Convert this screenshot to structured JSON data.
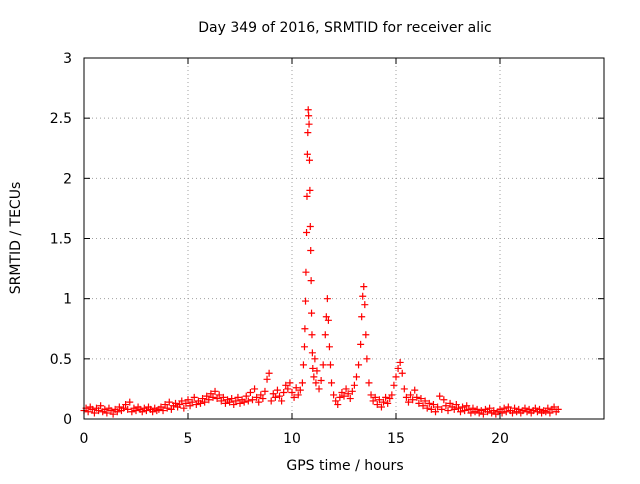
{
  "chart_data": {
    "type": "scatter",
    "title": "Day 349 of 2016, SRMTID for receiver alic",
    "xlabel": "GPS time / hours",
    "ylabel": "SRMTID / TECUs",
    "xlim": [
      0,
      25
    ],
    "ylim": [
      0,
      3
    ],
    "x_ticks": [
      0,
      5,
      10,
      15,
      20
    ],
    "x_tick_labels": [
      "0",
      "5",
      "10",
      "15",
      "20"
    ],
    "y_ticks": [
      0,
      0.5,
      1,
      1.5,
      2,
      2.5,
      3
    ],
    "y_tick_labels": [
      "0",
      "0.5",
      "1",
      "1.5",
      "2",
      "2.5",
      "3"
    ],
    "grid": true,
    "marker": "+",
    "colors": {
      "series": "#ff0000",
      "grid": "#a0a0a0",
      "axes": "#000000"
    },
    "series": [
      {
        "name": "SRMTID",
        "points": [
          [
            0.0,
            0.07
          ],
          [
            0.1,
            0.09
          ],
          [
            0.2,
            0.06
          ],
          [
            0.3,
            0.1
          ],
          [
            0.4,
            0.08
          ],
          [
            0.5,
            0.05
          ],
          [
            0.6,
            0.09
          ],
          [
            0.7,
            0.07
          ],
          [
            0.8,
            0.11
          ],
          [
            0.9,
            0.06
          ],
          [
            1.0,
            0.08
          ],
          [
            1.1,
            0.05
          ],
          [
            1.2,
            0.09
          ],
          [
            1.3,
            0.07
          ],
          [
            1.4,
            0.04
          ],
          [
            1.5,
            0.08
          ],
          [
            1.6,
            0.06
          ],
          [
            1.7,
            0.1
          ],
          [
            1.8,
            0.07
          ],
          [
            1.9,
            0.09
          ],
          [
            2.0,
            0.12
          ],
          [
            2.1,
            0.08
          ],
          [
            2.2,
            0.14
          ],
          [
            2.3,
            0.06
          ],
          [
            2.4,
            0.09
          ],
          [
            2.5,
            0.07
          ],
          [
            2.6,
            0.1
          ],
          [
            2.7,
            0.08
          ],
          [
            2.8,
            0.06
          ],
          [
            2.9,
            0.09
          ],
          [
            3.0,
            0.07
          ],
          [
            3.1,
            0.1
          ],
          [
            3.2,
            0.08
          ],
          [
            3.3,
            0.06
          ],
          [
            3.4,
            0.09
          ],
          [
            3.5,
            0.07
          ],
          [
            3.6,
            0.08
          ],
          [
            3.7,
            0.1
          ],
          [
            3.8,
            0.07
          ],
          [
            3.9,
            0.12
          ],
          [
            4.0,
            0.09
          ],
          [
            4.1,
            0.14
          ],
          [
            4.2,
            0.08
          ],
          [
            4.3,
            0.11
          ],
          [
            4.4,
            0.13
          ],
          [
            4.5,
            0.1
          ],
          [
            4.6,
            0.12
          ],
          [
            4.7,
            0.15
          ],
          [
            4.8,
            0.09
          ],
          [
            4.9,
            0.13
          ],
          [
            5.0,
            0.16
          ],
          [
            5.1,
            0.11
          ],
          [
            5.2,
            0.14
          ],
          [
            5.3,
            0.18
          ],
          [
            5.4,
            0.12
          ],
          [
            5.5,
            0.15
          ],
          [
            5.6,
            0.13
          ],
          [
            5.7,
            0.17
          ],
          [
            5.8,
            0.14
          ],
          [
            5.9,
            0.19
          ],
          [
            6.0,
            0.16
          ],
          [
            6.1,
            0.21
          ],
          [
            6.2,
            0.18
          ],
          [
            6.3,
            0.23
          ],
          [
            6.4,
            0.17
          ],
          [
            6.5,
            0.2
          ],
          [
            6.6,
            0.15
          ],
          [
            6.7,
            0.18
          ],
          [
            6.8,
            0.13
          ],
          [
            6.9,
            0.16
          ],
          [
            7.0,
            0.14
          ],
          [
            7.1,
            0.17
          ],
          [
            7.2,
            0.12
          ],
          [
            7.3,
            0.15
          ],
          [
            7.4,
            0.18
          ],
          [
            7.5,
            0.13
          ],
          [
            7.6,
            0.16
          ],
          [
            7.7,
            0.14
          ],
          [
            7.8,
            0.19
          ],
          [
            7.9,
            0.15
          ],
          [
            8.0,
            0.22
          ],
          [
            8.1,
            0.16
          ],
          [
            8.2,
            0.25
          ],
          [
            8.3,
            0.18
          ],
          [
            8.4,
            0.14
          ],
          [
            8.5,
            0.2
          ],
          [
            8.6,
            0.17
          ],
          [
            8.7,
            0.23
          ],
          [
            8.8,
            0.33
          ],
          [
            8.9,
            0.38
          ],
          [
            9.0,
            0.15
          ],
          [
            9.1,
            0.21
          ],
          [
            9.2,
            0.18
          ],
          [
            9.3,
            0.24
          ],
          [
            9.4,
            0.19
          ],
          [
            9.5,
            0.15
          ],
          [
            9.6,
            0.22
          ],
          [
            9.7,
            0.28
          ],
          [
            9.8,
            0.25
          ],
          [
            9.9,
            0.3
          ],
          [
            10.0,
            0.22
          ],
          [
            10.1,
            0.18
          ],
          [
            10.2,
            0.26
          ],
          [
            10.3,
            0.2
          ],
          [
            10.4,
            0.24
          ],
          [
            10.5,
            0.3
          ],
          [
            10.55,
            0.45
          ],
          [
            10.6,
            0.6
          ],
          [
            10.62,
            0.75
          ],
          [
            10.65,
            0.98
          ],
          [
            10.67,
            1.22
          ],
          [
            10.7,
            1.55
          ],
          [
            10.72,
            1.85
          ],
          [
            10.74,
            2.2
          ],
          [
            10.76,
            2.38
          ],
          [
            10.78,
            2.57
          ],
          [
            10.8,
            2.52
          ],
          [
            10.82,
            2.45
          ],
          [
            10.84,
            2.15
          ],
          [
            10.86,
            1.9
          ],
          [
            10.88,
            1.6
          ],
          [
            10.9,
            1.4
          ],
          [
            10.92,
            1.15
          ],
          [
            10.94,
            0.88
          ],
          [
            10.96,
            0.7
          ],
          [
            10.98,
            0.55
          ],
          [
            11.0,
            0.42
          ],
          [
            11.05,
            0.35
          ],
          [
            11.1,
            0.5
          ],
          [
            11.15,
            0.3
          ],
          [
            11.2,
            0.4
          ],
          [
            11.3,
            0.25
          ],
          [
            11.4,
            0.32
          ],
          [
            11.5,
            0.45
          ],
          [
            11.6,
            0.7
          ],
          [
            11.65,
            0.85
          ],
          [
            11.7,
            1.0
          ],
          [
            11.75,
            0.82
          ],
          [
            11.8,
            0.6
          ],
          [
            11.85,
            0.45
          ],
          [
            11.9,
            0.3
          ],
          [
            12.0,
            0.2
          ],
          [
            12.1,
            0.15
          ],
          [
            12.2,
            0.12
          ],
          [
            12.3,
            0.18
          ],
          [
            12.4,
            0.22
          ],
          [
            12.5,
            0.19
          ],
          [
            12.6,
            0.25
          ],
          [
            12.7,
            0.21
          ],
          [
            12.8,
            0.17
          ],
          [
            12.9,
            0.23
          ],
          [
            13.0,
            0.28
          ],
          [
            13.1,
            0.35
          ],
          [
            13.2,
            0.45
          ],
          [
            13.3,
            0.62
          ],
          [
            13.35,
            0.85
          ],
          [
            13.4,
            1.02
          ],
          [
            13.45,
            1.1
          ],
          [
            13.5,
            0.95
          ],
          [
            13.55,
            0.7
          ],
          [
            13.6,
            0.5
          ],
          [
            13.7,
            0.3
          ],
          [
            13.8,
            0.2
          ],
          [
            13.9,
            0.15
          ],
          [
            14.0,
            0.18
          ],
          [
            14.1,
            0.12
          ],
          [
            14.2,
            0.16
          ],
          [
            14.3,
            0.1
          ],
          [
            14.4,
            0.14
          ],
          [
            14.5,
            0.18
          ],
          [
            14.6,
            0.13
          ],
          [
            14.7,
            0.17
          ],
          [
            14.8,
            0.2
          ],
          [
            14.9,
            0.28
          ],
          [
            15.0,
            0.35
          ],
          [
            15.1,
            0.42
          ],
          [
            15.2,
            0.47
          ],
          [
            15.3,
            0.38
          ],
          [
            15.4,
            0.25
          ],
          [
            15.5,
            0.18
          ],
          [
            15.6,
            0.14
          ],
          [
            15.7,
            0.2
          ],
          [
            15.8,
            0.16
          ],
          [
            15.9,
            0.24
          ],
          [
            16.0,
            0.18
          ],
          [
            16.1,
            0.13
          ],
          [
            16.2,
            0.17
          ],
          [
            16.3,
            0.11
          ],
          [
            16.4,
            0.15
          ],
          [
            16.5,
            0.09
          ],
          [
            16.6,
            0.13
          ],
          [
            16.7,
            0.08
          ],
          [
            16.8,
            0.12
          ],
          [
            16.9,
            0.06
          ],
          [
            17.0,
            0.1
          ],
          [
            17.1,
            0.19
          ],
          [
            17.2,
            0.08
          ],
          [
            17.3,
            0.16
          ],
          [
            17.4,
            0.11
          ],
          [
            17.5,
            0.07
          ],
          [
            17.6,
            0.13
          ],
          [
            17.7,
            0.1
          ],
          [
            17.8,
            0.08
          ],
          [
            17.9,
            0.12
          ],
          [
            18.0,
            0.09
          ],
          [
            18.1,
            0.06
          ],
          [
            18.2,
            0.1
          ],
          [
            18.3,
            0.07
          ],
          [
            18.4,
            0.11
          ],
          [
            18.5,
            0.08
          ],
          [
            18.6,
            0.05
          ],
          [
            18.7,
            0.09
          ],
          [
            18.8,
            0.06
          ],
          [
            18.9,
            0.08
          ],
          [
            19.0,
            0.05
          ],
          [
            19.1,
            0.07
          ],
          [
            19.2,
            0.04
          ],
          [
            19.3,
            0.08
          ],
          [
            19.4,
            0.06
          ],
          [
            19.5,
            0.09
          ],
          [
            19.6,
            0.05
          ],
          [
            19.7,
            0.07
          ],
          [
            19.8,
            0.04
          ],
          [
            19.9,
            0.06
          ],
          [
            20.0,
            0.08
          ],
          [
            20.1,
            0.05
          ],
          [
            20.2,
            0.09
          ],
          [
            20.3,
            0.06
          ],
          [
            20.4,
            0.1
          ],
          [
            20.5,
            0.07
          ],
          [
            20.6,
            0.05
          ],
          [
            20.7,
            0.09
          ],
          [
            20.8,
            0.06
          ],
          [
            20.9,
            0.08
          ],
          [
            21.0,
            0.05
          ],
          [
            21.1,
            0.07
          ],
          [
            21.2,
            0.09
          ],
          [
            21.3,
            0.06
          ],
          [
            21.4,
            0.08
          ],
          [
            21.5,
            0.05
          ],
          [
            21.6,
            0.07
          ],
          [
            21.7,
            0.09
          ],
          [
            21.8,
            0.06
          ],
          [
            21.9,
            0.08
          ],
          [
            22.0,
            0.05
          ],
          [
            22.1,
            0.07
          ],
          [
            22.2,
            0.06
          ],
          [
            22.3,
            0.09
          ],
          [
            22.4,
            0.05
          ],
          [
            22.5,
            0.08
          ],
          [
            22.6,
            0.1
          ],
          [
            22.7,
            0.06
          ],
          [
            22.8,
            0.08
          ]
        ]
      }
    ]
  }
}
